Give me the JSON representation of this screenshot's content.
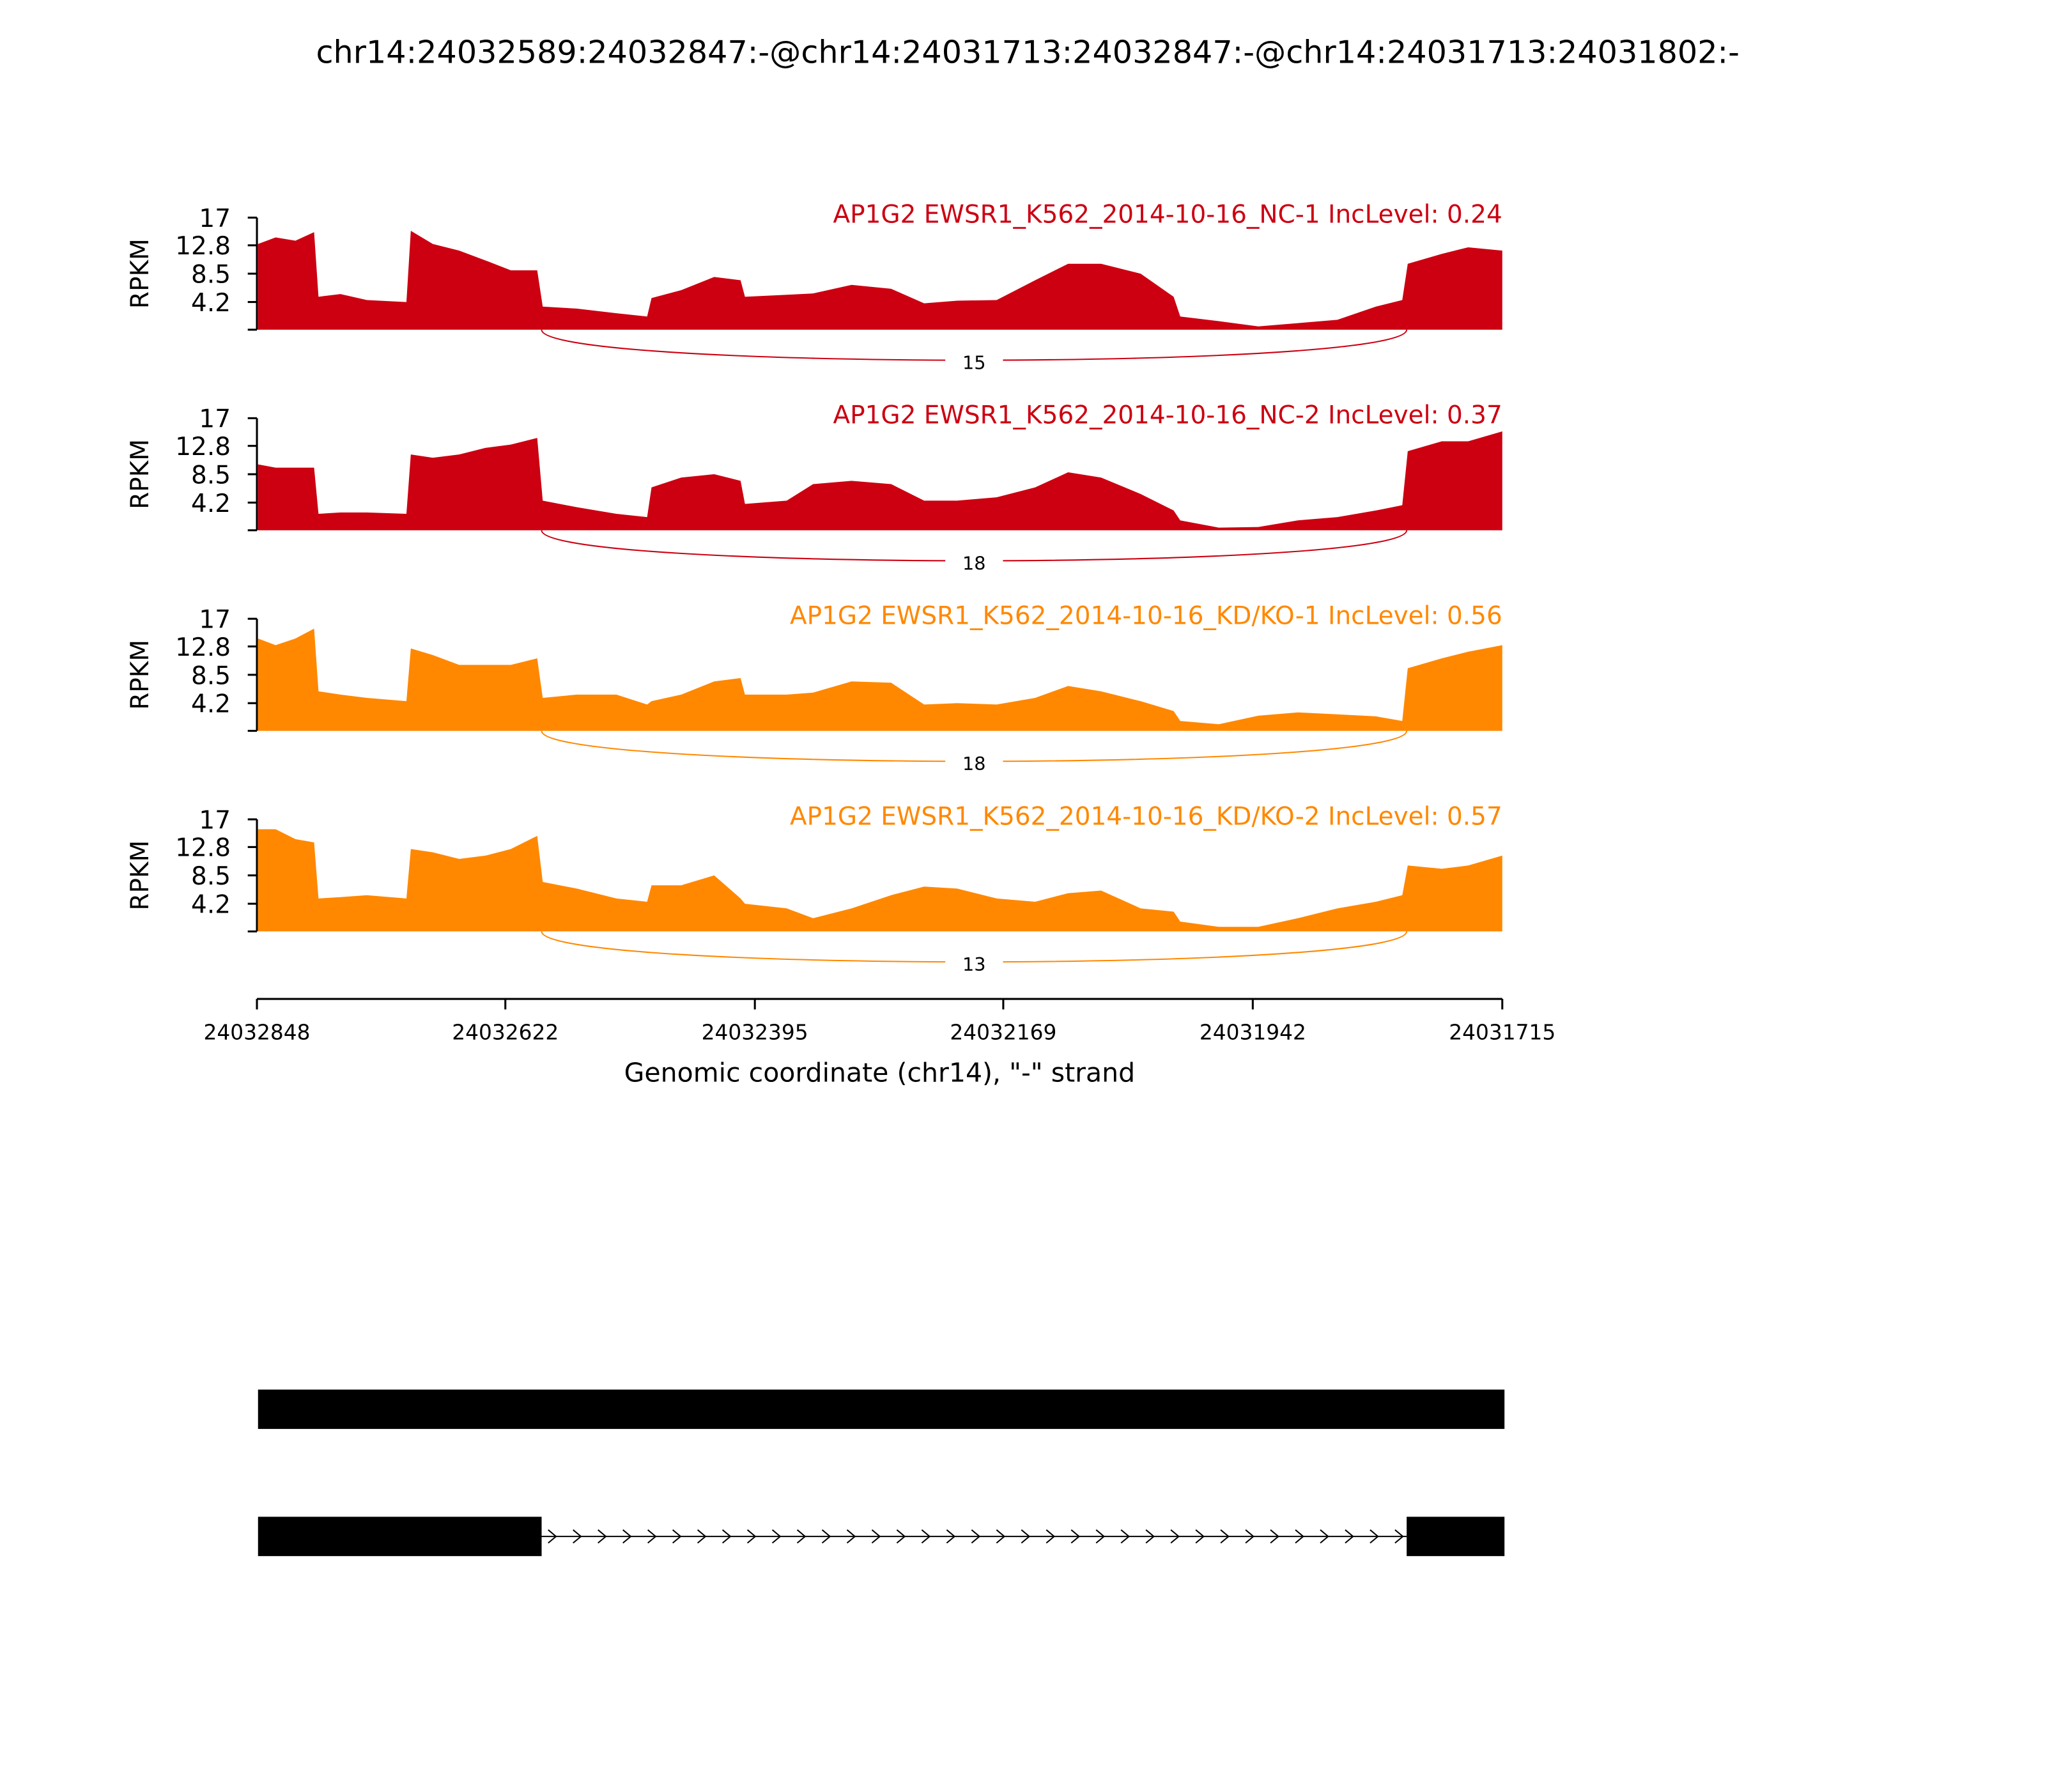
{
  "chart_data": {
    "type": "area",
    "title": "chr14:24032589:24032847:-@chr14:24031713:24032847:-@chr14:24031713:24031802:-",
    "xlabel": "Genomic coordinate (chr14), \"-\" strand",
    "ylabel": "RPKM",
    "xlim": [
      24032848,
      24031715
    ],
    "xticks": [
      24032848,
      24032622,
      24032395,
      24032169,
      24031942,
      24031715
    ],
    "ylim": [
      0,
      17
    ],
    "yticks": [
      4.2,
      8.5,
      12.8,
      17
    ],
    "x": [
      24032847,
      24032831,
      24032813,
      24032796,
      24032792,
      24032772,
      24032748,
      24032712,
      24032708,
      24032688,
      24032664,
      24032640,
      24032617,
      24032593,
      24032588,
      24032557,
      24032521,
      24032493,
      24032489,
      24032462,
      24032432,
      24032408,
      24032404,
      24032366,
      24032342,
      24032307,
      24032271,
      24032241,
      24032211,
      24032175,
      24032140,
      24032110,
      24032080,
      24032044,
      24032014,
      24032008,
      24031973,
      24031937,
      24031901,
      24031865,
      24031830,
      24031806,
      24031801,
      24031770,
      24031746,
      24031715
    ],
    "series": [
      {
        "name": "AP1G2 EWSR1_K562_2014-10-16_NC-1 IncLevel: 0.24",
        "color": "#cc0011",
        "values": [
          13,
          14,
          13.5,
          14.8,
          5,
          5.4,
          4.5,
          4.2,
          15,
          13,
          12,
          10.5,
          9,
          9,
          3.5,
          3.2,
          2.5,
          2,
          4.8,
          6,
          8,
          7.5,
          5,
          5.3,
          5.5,
          6.8,
          6.2,
          4,
          4.4,
          4.5,
          7.5,
          10,
          10,
          8.5,
          5,
          2,
          1.3,
          0.5,
          1,
          1.5,
          3.5,
          4.5,
          10,
          11.5,
          12.5,
          12
        ],
        "junction": {
          "start": 24032589,
          "end": 24031802,
          "count": 15
        }
      },
      {
        "name": "AP1G2 EWSR1_K562_2014-10-16_NC-2 IncLevel: 0.37",
        "color": "#cc0011",
        "values": [
          10,
          9.5,
          9.5,
          9.5,
          2.5,
          2.7,
          2.7,
          2.5,
          11.5,
          11,
          11.5,
          12.5,
          13,
          14,
          4.5,
          3.5,
          2.5,
          2,
          6.5,
          8,
          8.5,
          7.5,
          4,
          4.5,
          7,
          7.5,
          7,
          4.5,
          4.5,
          5,
          6.5,
          8.8,
          8,
          5.5,
          3,
          1.5,
          0.4,
          0.5,
          1.5,
          2,
          3,
          3.8,
          12,
          13.5,
          13.5,
          15
        ],
        "junction": {
          "start": 24032589,
          "end": 24031802,
          "count": 18
        }
      },
      {
        "name": "AP1G2 EWSR1_K562_2014-10-16_KD/KO-1 IncLevel: 0.56",
        "color": "#ff8800",
        "values": [
          14,
          13,
          14,
          15.5,
          6,
          5.5,
          5,
          4.5,
          12.5,
          11.5,
          10,
          10,
          10,
          11,
          5,
          5.5,
          5.5,
          4,
          4.5,
          5.5,
          7.5,
          8,
          5.5,
          5.5,
          5.8,
          7.5,
          7.3,
          4,
          4.2,
          4,
          5,
          6.8,
          6,
          4.5,
          3,
          1.5,
          1,
          2.3,
          2.8,
          2.5,
          2.2,
          1.5,
          9.5,
          11,
          12,
          13
        ],
        "junction": {
          "start": 24032589,
          "end": 24031802,
          "count": 18
        }
      },
      {
        "name": "AP1G2 EWSR1_K562_2014-10-16_KD/KO-2 IncLevel: 0.57",
        "color": "#ff8800",
        "values": [
          15.5,
          15.5,
          14,
          13.5,
          5,
          5.2,
          5.5,
          5,
          12.5,
          12,
          11,
          11.5,
          12.5,
          14.5,
          7.5,
          6.5,
          5,
          4.5,
          7,
          7,
          8.5,
          5,
          4.2,
          3.5,
          2,
          3.5,
          5.5,
          6.8,
          6.5,
          5,
          4.5,
          5.8,
          6.2,
          3.5,
          3,
          1.5,
          0.7,
          0.7,
          2,
          3.5,
          4.5,
          5.5,
          10,
          9.5,
          10,
          11.5
        ],
        "junction": {
          "start": 24032589,
          "end": 24031802,
          "count": 13
        }
      }
    ],
    "transcripts": [
      {
        "exons": [
          [
            24032847,
            24031713
          ]
        ]
      },
      {
        "exons": [
          [
            24032847,
            24032589
          ],
          [
            24031802,
            24031713
          ]
        ]
      }
    ]
  }
}
